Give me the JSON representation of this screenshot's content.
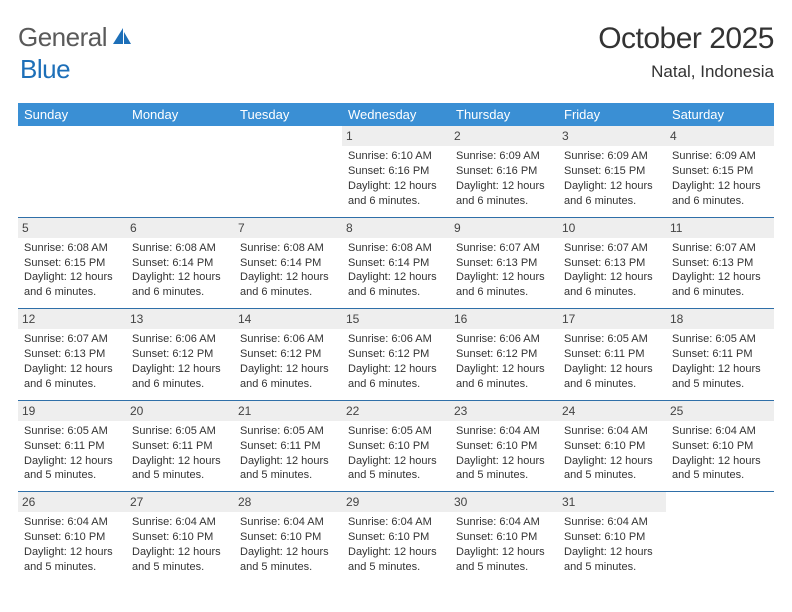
{
  "logo": {
    "word1": "General",
    "word2": "Blue"
  },
  "title": "October 2025",
  "location": "Natal, Indonesia",
  "colors": {
    "header_bg": "#3a8fd4",
    "header_text": "#ffffff",
    "row_divider": "#2f6fa8",
    "daynum_bg": "#eeeeee",
    "text": "#333333",
    "logo_gray": "#5a5a5a",
    "logo_blue": "#1d6fb8"
  },
  "weekdays": [
    "Sunday",
    "Monday",
    "Tuesday",
    "Wednesday",
    "Thursday",
    "Friday",
    "Saturday"
  ],
  "weeks": [
    [
      null,
      null,
      null,
      {
        "n": "1",
        "sr": "Sunrise: 6:10 AM",
        "ss": "Sunset: 6:16 PM",
        "dl": "Daylight: 12 hours and 6 minutes."
      },
      {
        "n": "2",
        "sr": "Sunrise: 6:09 AM",
        "ss": "Sunset: 6:16 PM",
        "dl": "Daylight: 12 hours and 6 minutes."
      },
      {
        "n": "3",
        "sr": "Sunrise: 6:09 AM",
        "ss": "Sunset: 6:15 PM",
        "dl": "Daylight: 12 hours and 6 minutes."
      },
      {
        "n": "4",
        "sr": "Sunrise: 6:09 AM",
        "ss": "Sunset: 6:15 PM",
        "dl": "Daylight: 12 hours and 6 minutes."
      }
    ],
    [
      {
        "n": "5",
        "sr": "Sunrise: 6:08 AM",
        "ss": "Sunset: 6:15 PM",
        "dl": "Daylight: 12 hours and 6 minutes."
      },
      {
        "n": "6",
        "sr": "Sunrise: 6:08 AM",
        "ss": "Sunset: 6:14 PM",
        "dl": "Daylight: 12 hours and 6 minutes."
      },
      {
        "n": "7",
        "sr": "Sunrise: 6:08 AM",
        "ss": "Sunset: 6:14 PM",
        "dl": "Daylight: 12 hours and 6 minutes."
      },
      {
        "n": "8",
        "sr": "Sunrise: 6:08 AM",
        "ss": "Sunset: 6:14 PM",
        "dl": "Daylight: 12 hours and 6 minutes."
      },
      {
        "n": "9",
        "sr": "Sunrise: 6:07 AM",
        "ss": "Sunset: 6:13 PM",
        "dl": "Daylight: 12 hours and 6 minutes."
      },
      {
        "n": "10",
        "sr": "Sunrise: 6:07 AM",
        "ss": "Sunset: 6:13 PM",
        "dl": "Daylight: 12 hours and 6 minutes."
      },
      {
        "n": "11",
        "sr": "Sunrise: 6:07 AM",
        "ss": "Sunset: 6:13 PM",
        "dl": "Daylight: 12 hours and 6 minutes."
      }
    ],
    [
      {
        "n": "12",
        "sr": "Sunrise: 6:07 AM",
        "ss": "Sunset: 6:13 PM",
        "dl": "Daylight: 12 hours and 6 minutes."
      },
      {
        "n": "13",
        "sr": "Sunrise: 6:06 AM",
        "ss": "Sunset: 6:12 PM",
        "dl": "Daylight: 12 hours and 6 minutes."
      },
      {
        "n": "14",
        "sr": "Sunrise: 6:06 AM",
        "ss": "Sunset: 6:12 PM",
        "dl": "Daylight: 12 hours and 6 minutes."
      },
      {
        "n": "15",
        "sr": "Sunrise: 6:06 AM",
        "ss": "Sunset: 6:12 PM",
        "dl": "Daylight: 12 hours and 6 minutes."
      },
      {
        "n": "16",
        "sr": "Sunrise: 6:06 AM",
        "ss": "Sunset: 6:12 PM",
        "dl": "Daylight: 12 hours and 6 minutes."
      },
      {
        "n": "17",
        "sr": "Sunrise: 6:05 AM",
        "ss": "Sunset: 6:11 PM",
        "dl": "Daylight: 12 hours and 6 minutes."
      },
      {
        "n": "18",
        "sr": "Sunrise: 6:05 AM",
        "ss": "Sunset: 6:11 PM",
        "dl": "Daylight: 12 hours and 5 minutes."
      }
    ],
    [
      {
        "n": "19",
        "sr": "Sunrise: 6:05 AM",
        "ss": "Sunset: 6:11 PM",
        "dl": "Daylight: 12 hours and 5 minutes."
      },
      {
        "n": "20",
        "sr": "Sunrise: 6:05 AM",
        "ss": "Sunset: 6:11 PM",
        "dl": "Daylight: 12 hours and 5 minutes."
      },
      {
        "n": "21",
        "sr": "Sunrise: 6:05 AM",
        "ss": "Sunset: 6:11 PM",
        "dl": "Daylight: 12 hours and 5 minutes."
      },
      {
        "n": "22",
        "sr": "Sunrise: 6:05 AM",
        "ss": "Sunset: 6:10 PM",
        "dl": "Daylight: 12 hours and 5 minutes."
      },
      {
        "n": "23",
        "sr": "Sunrise: 6:04 AM",
        "ss": "Sunset: 6:10 PM",
        "dl": "Daylight: 12 hours and 5 minutes."
      },
      {
        "n": "24",
        "sr": "Sunrise: 6:04 AM",
        "ss": "Sunset: 6:10 PM",
        "dl": "Daylight: 12 hours and 5 minutes."
      },
      {
        "n": "25",
        "sr": "Sunrise: 6:04 AM",
        "ss": "Sunset: 6:10 PM",
        "dl": "Daylight: 12 hours and 5 minutes."
      }
    ],
    [
      {
        "n": "26",
        "sr": "Sunrise: 6:04 AM",
        "ss": "Sunset: 6:10 PM",
        "dl": "Daylight: 12 hours and 5 minutes."
      },
      {
        "n": "27",
        "sr": "Sunrise: 6:04 AM",
        "ss": "Sunset: 6:10 PM",
        "dl": "Daylight: 12 hours and 5 minutes."
      },
      {
        "n": "28",
        "sr": "Sunrise: 6:04 AM",
        "ss": "Sunset: 6:10 PM",
        "dl": "Daylight: 12 hours and 5 minutes."
      },
      {
        "n": "29",
        "sr": "Sunrise: 6:04 AM",
        "ss": "Sunset: 6:10 PM",
        "dl": "Daylight: 12 hours and 5 minutes."
      },
      {
        "n": "30",
        "sr": "Sunrise: 6:04 AM",
        "ss": "Sunset: 6:10 PM",
        "dl": "Daylight: 12 hours and 5 minutes."
      },
      {
        "n": "31",
        "sr": "Sunrise: 6:04 AM",
        "ss": "Sunset: 6:10 PM",
        "dl": "Daylight: 12 hours and 5 minutes."
      },
      null
    ]
  ]
}
